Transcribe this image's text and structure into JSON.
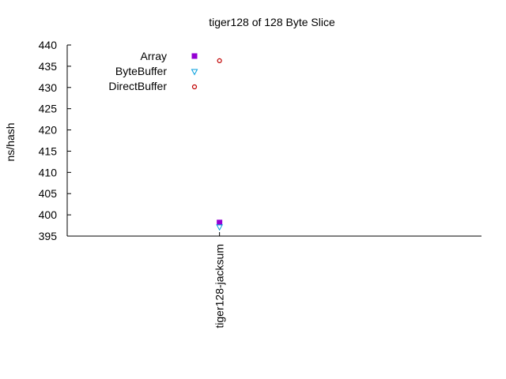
{
  "chart_data": {
    "type": "scatter",
    "title": "tiger128 of 128 Byte Slice",
    "xlabel": "",
    "ylabel": "ns/hash",
    "categories": [
      "tiger128-jacksum"
    ],
    "ylim": [
      395,
      440
    ],
    "yticks": [
      395,
      400,
      405,
      410,
      415,
      420,
      425,
      430,
      435,
      440
    ],
    "grid": false,
    "legend_position": "top-left",
    "series": [
      {
        "name": "Array",
        "values": [
          398.2
        ],
        "color": "#9400d3",
        "marker": "filled-square"
      },
      {
        "name": "ByteBuffer",
        "values": [
          397.1
        ],
        "color": "#009ede",
        "marker": "open-triangle-down"
      },
      {
        "name": "DirectBuffer",
        "values": [
          436.3
        ],
        "color": "#c00000",
        "marker": "open-circle"
      }
    ]
  }
}
